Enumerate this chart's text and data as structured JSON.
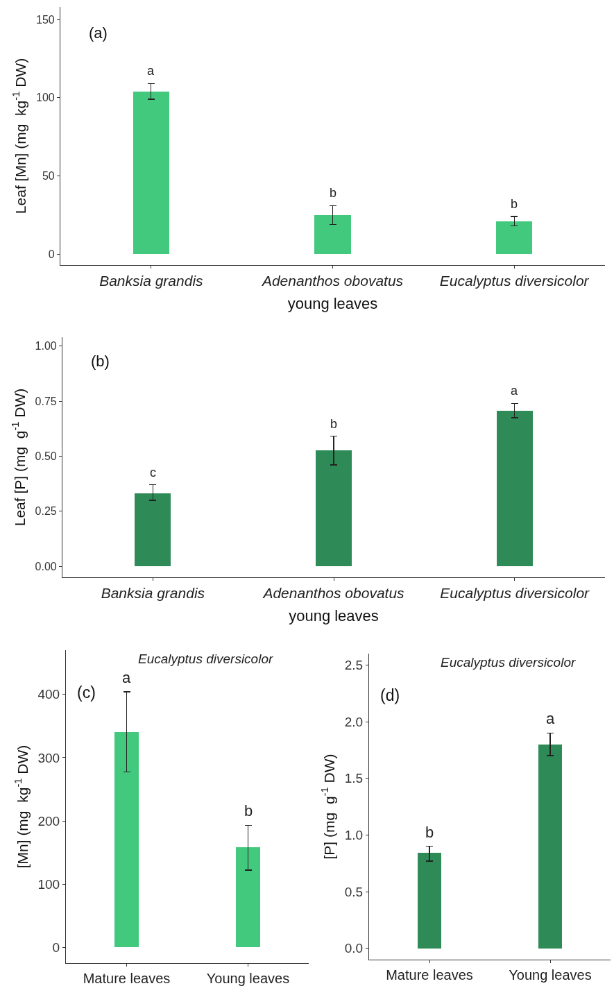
{
  "chart_data": [
    {
      "type": "bar",
      "categories": [
        "Banksia grandis",
        "Adenanthos obovatus",
        "Eucalyptus diversicolor"
      ],
      "values": [
        104,
        25,
        21
      ],
      "color": "#43c97e",
      "errors": [
        [
          99,
          109
        ],
        [
          19,
          31
        ],
        [
          18,
          24
        ]
      ],
      "xlabel": "young leaves",
      "ylabel": "Leaf [Mn] (mg  kg$^{-1}$ DW)",
      "ylim": [
        -7,
        158
      ],
      "yticks": [
        0,
        50,
        100,
        150
      ],
      "annotations": [
        "(a)",
        "a",
        "b",
        "b"
      ]
    },
    {
      "type": "bar",
      "categories": [
        "Banksia grandis",
        "Adenanthos obovatus",
        "Eucalyptus diversicolor"
      ],
      "values": [
        0.33,
        0.525,
        0.705
      ],
      "color": "#2e8b57",
      "errors": [
        [
          0.3,
          0.37
        ],
        [
          0.46,
          0.59
        ],
        [
          0.675,
          0.74
        ]
      ],
      "xlabel": "young leaves",
      "ylabel": "Leaf [P] (mg  g$^{-1}$ DW)",
      "ylim": [
        -0.05,
        1.04
      ],
      "yticks": [
        {
          "value": 0,
          "label": "0.00"
        },
        0.25,
        {
          "value": 0.5,
          "label": "0.50"
        },
        0.75,
        {
          "value": 1,
          "label": "1.00"
        }
      ],
      "annotations": [
        "(b)",
        "c",
        "b",
        "a"
      ]
    },
    {
      "type": "bar",
      "title": "Eucalyptus diversicolor",
      "categories": [
        "Mature leaves",
        "Young leaves"
      ],
      "values": [
        340,
        158
      ],
      "color": "#43c97e",
      "errors": [
        [
          277,
          404
        ],
        [
          122,
          193
        ]
      ],
      "ylabel": "[Mn] (mg  kg$^{-1}$ DW)",
      "ylim": [
        -25,
        470
      ],
      "yticks": [
        0,
        100,
        200,
        300,
        400
      ],
      "annotations": [
        "(c)",
        "a",
        "b"
      ]
    },
    {
      "type": "bar",
      "title": "Eucalyptus diversicolor",
      "categories": [
        "Mature leaves",
        "Young leaves"
      ],
      "values": [
        0.84,
        1.8
      ],
      "color": "#2e8b57",
      "errors": [
        [
          0.77,
          0.9
        ],
        [
          1.7,
          1.9
        ]
      ],
      "ylabel": "[P] (mg  g$^{-1}$ DW)",
      "ylim": [
        -0.1,
        2.6
      ],
      "yticks": [
        {
          "value": 0,
          "label": "0.0"
        },
        0.5,
        {
          "value": 1,
          "label": "1.0"
        },
        1.5,
        {
          "value": 2,
          "label": "2.0"
        },
        2.5
      ],
      "annotations": [
        "(d)",
        "b",
        "a"
      ]
    }
  ]
}
